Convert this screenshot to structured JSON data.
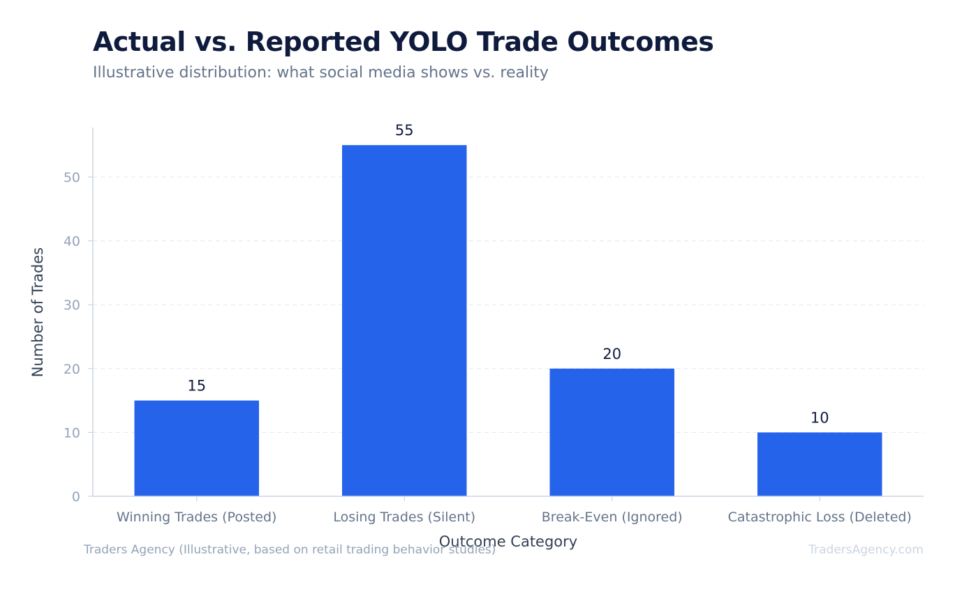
{
  "chart_data": {
    "type": "bar",
    "title": "Actual vs. Reported YOLO Trade Outcomes",
    "subtitle": "Illustrative distribution: what social media shows vs. reality",
    "categories": [
      "Winning Trades (Posted)",
      "Losing Trades (Silent)",
      "Break-Even (Ignored)",
      "Catastrophic Loss (Deleted)"
    ],
    "values": [
      15,
      55,
      20,
      10
    ],
    "xlabel": "Outcome Category",
    "ylabel": "Number of Trades",
    "ylim": [
      0,
      57.75
    ],
    "yticks": [
      0,
      10,
      20,
      30,
      40,
      50
    ],
    "grid": true,
    "bar_color": "#2563eb"
  },
  "footer": {
    "source": "Traders Agency (Illustrative, based on retail trading behavior studies)",
    "brand": "TradersAgency.com"
  }
}
